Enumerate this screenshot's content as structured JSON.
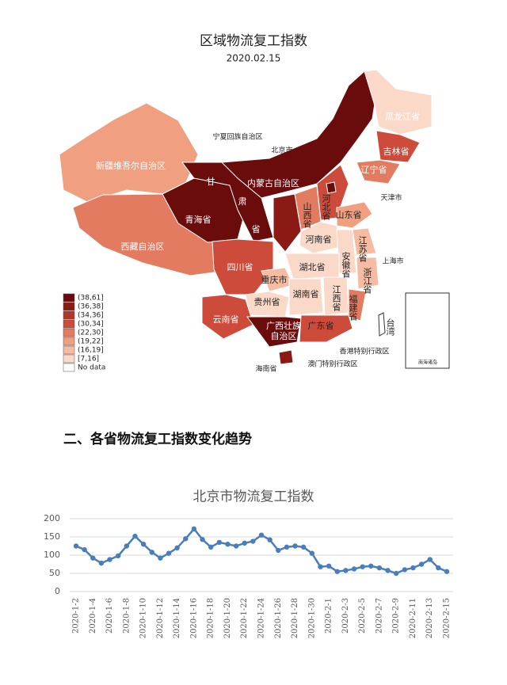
{
  "map": {
    "title": "区域物流复工指数",
    "date": "2020.02.15",
    "labels": [
      "黑龙江省",
      "吉林省",
      "辽宁省",
      "新疆维吾尔自治区",
      "内蒙古自治区",
      "甘",
      "肃",
      "省",
      "青海省",
      "西藏自治区",
      "山西省",
      "河北省",
      "山东省",
      "河南省",
      "江苏省",
      "安徽省",
      "湖北省",
      "浙江省",
      "四川省",
      "重庆市",
      "贵州省",
      "湖南省",
      "江西省",
      "福建省",
      "云南省",
      "广西壮族",
      "自治区",
      "广东省",
      "台湾",
      "宁夏回族自治区",
      "北京市",
      "天津市",
      "上海市",
      "香港特别行政区",
      "澳门特别行政区",
      "海南省",
      "南海诸岛"
    ],
    "legend": [
      {
        "label": "(38,61]",
        "color": "#6b0c0c"
      },
      {
        "label": "(36,38]",
        "color": "#8c1a14"
      },
      {
        "label": "(34,36]",
        "color": "#b3362a"
      },
      {
        "label": "(30,34]",
        "color": "#cc4b3b"
      },
      {
        "label": "(22,30]",
        "color": "#e27b60"
      },
      {
        "label": "(19,22]",
        "color": "#f0a080"
      },
      {
        "label": "(16,19]",
        "color": "#f6bca3"
      },
      {
        "label": "[7,16]",
        "color": "#fbd9c9"
      },
      {
        "label": "No data",
        "color": "#ffffff"
      }
    ]
  },
  "section": {
    "heading": "二、各省物流复工指数变化趋势"
  },
  "chart_data": {
    "type": "line",
    "title": "北京市物流复工指数",
    "categories": [
      "2020-1-2",
      null,
      "2020-1-4",
      null,
      "2020-1-6",
      null,
      "2020-1-8",
      null,
      "2020-1-10",
      null,
      "2020-1-12",
      null,
      "2020-1-14",
      null,
      "2020-1-16",
      null,
      "2020-1-18",
      null,
      "2020-1-20",
      null,
      "2020-1-22",
      null,
      "2020-1-24",
      null,
      "2020-1-26",
      null,
      "2020-1-28",
      null,
      "2020-1-30",
      null,
      "2020-2-1",
      null,
      "2020-2-3",
      null,
      "2020-2-5",
      null,
      "2020-2-7",
      null,
      "2020-2-9",
      null,
      "2020-2-11",
      null,
      "2020-2-13",
      null,
      "2020-2-15"
    ],
    "values": [
      125,
      115,
      92,
      78,
      88,
      98,
      125,
      152,
      130,
      108,
      92,
      105,
      120,
      145,
      172,
      143,
      122,
      135,
      130,
      125,
      133,
      138,
      155,
      142,
      113,
      122,
      125,
      122,
      105,
      68,
      70,
      55,
      58,
      62,
      68,
      70,
      65,
      58,
      50,
      60,
      65,
      75,
      88,
      65,
      55
    ],
    "color": "#4a7ebb",
    "ylim": [
      0,
      200
    ],
    "yticks": [
      0,
      50,
      100,
      150,
      200
    ],
    "grid": true
  }
}
